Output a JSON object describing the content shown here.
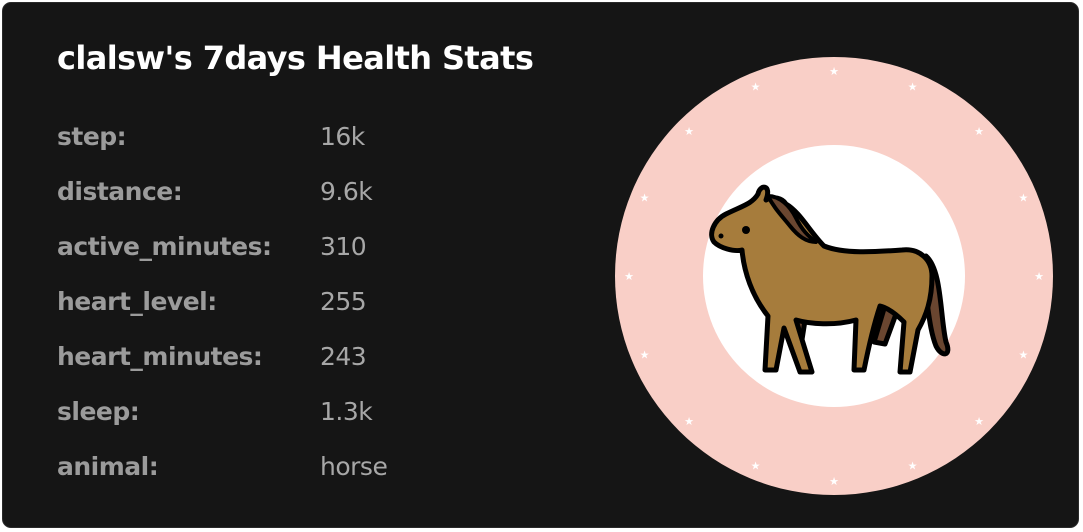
{
  "title": "clalsw's 7days Health Stats",
  "stats": [
    {
      "key": "step:",
      "value": "16k"
    },
    {
      "key": "distance:",
      "value": "9.6k"
    },
    {
      "key": "active_minutes:",
      "value": "310"
    },
    {
      "key": "heart_level:",
      "value": "255"
    },
    {
      "key": "heart_minutes:",
      "value": "243"
    },
    {
      "key": "sleep:",
      "value": "1.3k"
    },
    {
      "key": "animal:",
      "value": "horse"
    }
  ],
  "badge": {
    "animal_icon": "horse-icon",
    "ring_color": "#f9cfc7",
    "inner_color": "#ffffff",
    "horse_color": "#a67c3c",
    "horse_shadow_color": "#6a4630",
    "background_color": "#151515"
  }
}
